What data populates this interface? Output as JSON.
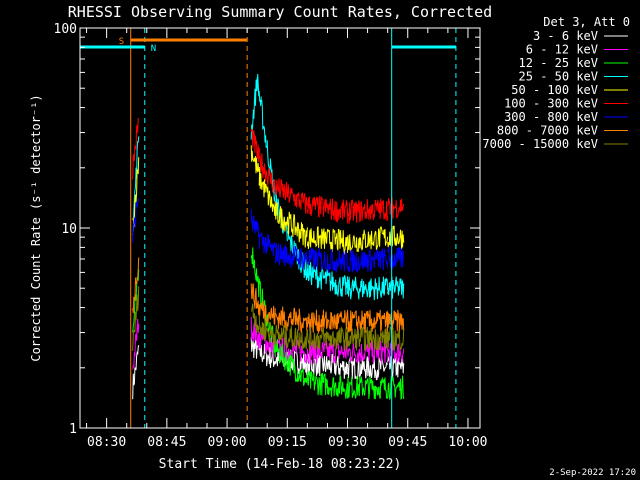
{
  "chart_data": {
    "type": "line",
    "title": "RHESSI Observing Summary Count Rates, Corrected",
    "xlabel": "Start Time (14-Feb-18 08:23:22)",
    "ylabel": "Corrected Count Rate (s⁻¹ detector⁻¹)",
    "yscale": "log",
    "ylim": [
      1,
      100
    ],
    "xlim": [
      "08:23:22",
      "10:03:00"
    ],
    "x_ticks": [
      "08:30",
      "08:45",
      "09:00",
      "09:15",
      "09:30",
      "09:45",
      "10:00"
    ],
    "y_ticks": [
      "1",
      "10",
      "100"
    ],
    "grid": false,
    "legend_position": "right",
    "legend_title": "Det 3, Att 0",
    "series": [
      {
        "name": "3 - 6 keV",
        "color": "#ffffff",
        "x": [
          "08:36:30",
          "08:38:00",
          "09:06:00",
          "09:08:00",
          "09:12:00",
          "09:20:00",
          "09:30:00",
          "09:40:00",
          "09:44:00"
        ],
        "y": [
          1.6,
          2.5,
          2.6,
          2.4,
          2.2,
          2.1,
          2.0,
          2.0,
          2.0
        ]
      },
      {
        "name": "6 - 12 keV",
        "color": "#ff00ff",
        "x": [
          "08:36:30",
          "08:38:00",
          "09:06:00",
          "09:08:00",
          "09:12:00",
          "09:20:00",
          "09:30:00",
          "09:40:00",
          "09:44:00"
        ],
        "y": [
          2.0,
          3.5,
          3.2,
          2.8,
          2.5,
          2.4,
          2.4,
          2.4,
          2.4
        ]
      },
      {
        "name": "12 - 25 keV",
        "color": "#00ff00",
        "x": [
          "08:36:30",
          "08:38:00",
          "09:06:00",
          "09:08:00",
          "09:12:00",
          "09:20:00",
          "09:30:00",
          "09:40:00",
          "09:44:00"
        ],
        "y": [
          3.0,
          6.0,
          8.0,
          5.0,
          2.5,
          1.7,
          1.6,
          1.6,
          1.6
        ]
      },
      {
        "name": "25 - 50 keV",
        "color": "#00ffff",
        "x": [
          "08:36:30",
          "08:38:00",
          "09:06:00",
          "09:07:30",
          "09:08:30",
          "09:10:00",
          "09:12:00",
          "09:15:00",
          "09:20:00",
          "09:30:00",
          "09:40:00",
          "09:44:00"
        ],
        "y": [
          10.0,
          30.0,
          30.0,
          55.0,
          40.0,
          25.0,
          14.0,
          9.0,
          6.0,
          5.0,
          5.0,
          5.0
        ]
      },
      {
        "name": "50 - 100 keV",
        "color": "#ffff00",
        "x": [
          "08:36:30",
          "08:38:00",
          "09:06:00",
          "09:08:00",
          "09:12:00",
          "09:20:00",
          "09:30:00",
          "09:40:00",
          "09:44:00"
        ],
        "y": [
          10.0,
          22.0,
          25.0,
          18.0,
          12.0,
          9.0,
          8.5,
          9.0,
          9.0
        ]
      },
      {
        "name": "100 - 300 keV",
        "color": "#ff0000",
        "x": [
          "08:36:30",
          "08:38:00",
          "09:06:00",
          "09:08:00",
          "09:12:00",
          "09:20:00",
          "09:30:00",
          "09:40:00",
          "09:44:00"
        ],
        "y": [
          20.0,
          35.0,
          30.0,
          22.0,
          16.0,
          13.0,
          12.0,
          12.5,
          13.0
        ]
      },
      {
        "name": "300 - 800 keV",
        "color": "#0000ff",
        "x": [
          "08:36:30",
          "08:38:00",
          "09:06:00",
          "09:08:00",
          "09:12:00",
          "09:20:00",
          "09:30:00",
          "09:40:00",
          "09:44:00"
        ],
        "y": [
          9.0,
          15.0,
          11.0,
          9.0,
          7.5,
          7.0,
          6.8,
          7.0,
          7.0
        ]
      },
      {
        "name": "800 - 7000 keV",
        "color": "#ff8000",
        "x": [
          "08:36:30",
          "08:38:00",
          "09:06:00",
          "09:08:00",
          "09:12:00",
          "09:20:00",
          "09:30:00",
          "09:40:00",
          "09:44:00"
        ],
        "y": [
          4.0,
          7.0,
          5.0,
          4.0,
          3.6,
          3.4,
          3.4,
          3.4,
          3.4
        ]
      },
      {
        "name": "7000 - 15000 keV",
        "color": "#808000",
        "x": [
          "08:36:30",
          "08:38:00",
          "09:06:00",
          "09:08:00",
          "09:12:00",
          "09:20:00",
          "09:30:00",
          "09:40:00",
          "09:44:00"
        ],
        "y": [
          2.5,
          5.0,
          4.0,
          3.2,
          2.9,
          2.8,
          2.8,
          2.8,
          2.8
        ]
      }
    ],
    "annotations": [
      {
        "label": "S",
        "color": "#ff8000",
        "type": "saa",
        "start": "08:36:00",
        "end": "09:05:00"
      },
      {
        "label": "N",
        "color": "#00ffff",
        "type": "night",
        "start": "08:23:22",
        "end": "08:39:30"
      },
      {
        "label": "",
        "color": "#00ffff",
        "type": "night",
        "start": "09:41:00",
        "end": "09:57:00"
      }
    ],
    "vlines": [
      {
        "x": "08:36:00",
        "color": "#ff8000",
        "style": "solid"
      },
      {
        "x": "08:39:30",
        "color": "#00ffff",
        "style": "dashed"
      },
      {
        "x": "09:05:00",
        "color": "#ff8000",
        "style": "dashed"
      },
      {
        "x": "09:41:00",
        "color": "#00ffff",
        "style": "solid"
      },
      {
        "x": "09:57:00",
        "color": "#00ffff",
        "style": "dashed"
      }
    ]
  },
  "footer_date": "2-Sep-2022 17:20"
}
